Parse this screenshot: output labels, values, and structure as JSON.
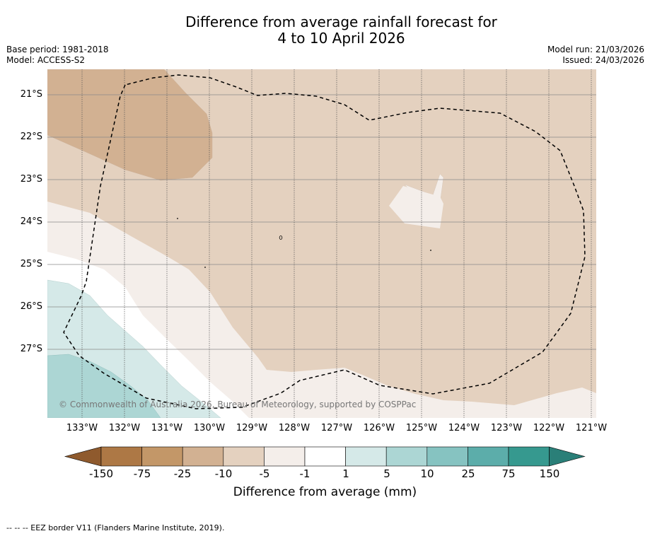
{
  "title": {
    "line1": "Difference from average rainfall forecast for",
    "line2": "4 to 10 April 2026"
  },
  "meta": {
    "base_period": "Base period: 1981-2018",
    "model": "Model: ACCESS-S2",
    "model_run": "Model run: 21/03/2026",
    "issued": "Issued: 24/03/2026"
  },
  "map": {
    "lat_labels": [
      "21°S",
      "22°S",
      "23°S",
      "24°S",
      "25°S",
      "26°S",
      "27°S"
    ],
    "lon_labels": [
      "133°W",
      "132°W",
      "131°W",
      "130°W",
      "129°W",
      "128°W",
      "127°W",
      "126°W",
      "125°W",
      "124°W",
      "123°W",
      "122°W",
      "121°W"
    ],
    "copyright": "© Commonwealth of Australia 2026, Bureau of Meteorology, supported by COSPPac"
  },
  "colorbar": {
    "tick_labels": [
      "-150",
      "-75",
      "-25",
      "-10",
      "-5",
      "-1",
      "1",
      "5",
      "10",
      "25",
      "75",
      "150"
    ],
    "colors": [
      "#ad7845",
      "#c39768",
      "#d2b192",
      "#e4d1bf",
      "#f4eeea",
      "#ffffff",
      "#d5e9e8",
      "#acd6d4",
      "#86c3c1",
      "#5cadaa",
      "#36998f"
    ],
    "under_color": "#8f5a2d",
    "over_color": "#2a7f78",
    "label": "Difference from average (mm)"
  },
  "footnote": "--  --  -- EEZ border V11 (Flanders Marine Institute, 2019)."
}
